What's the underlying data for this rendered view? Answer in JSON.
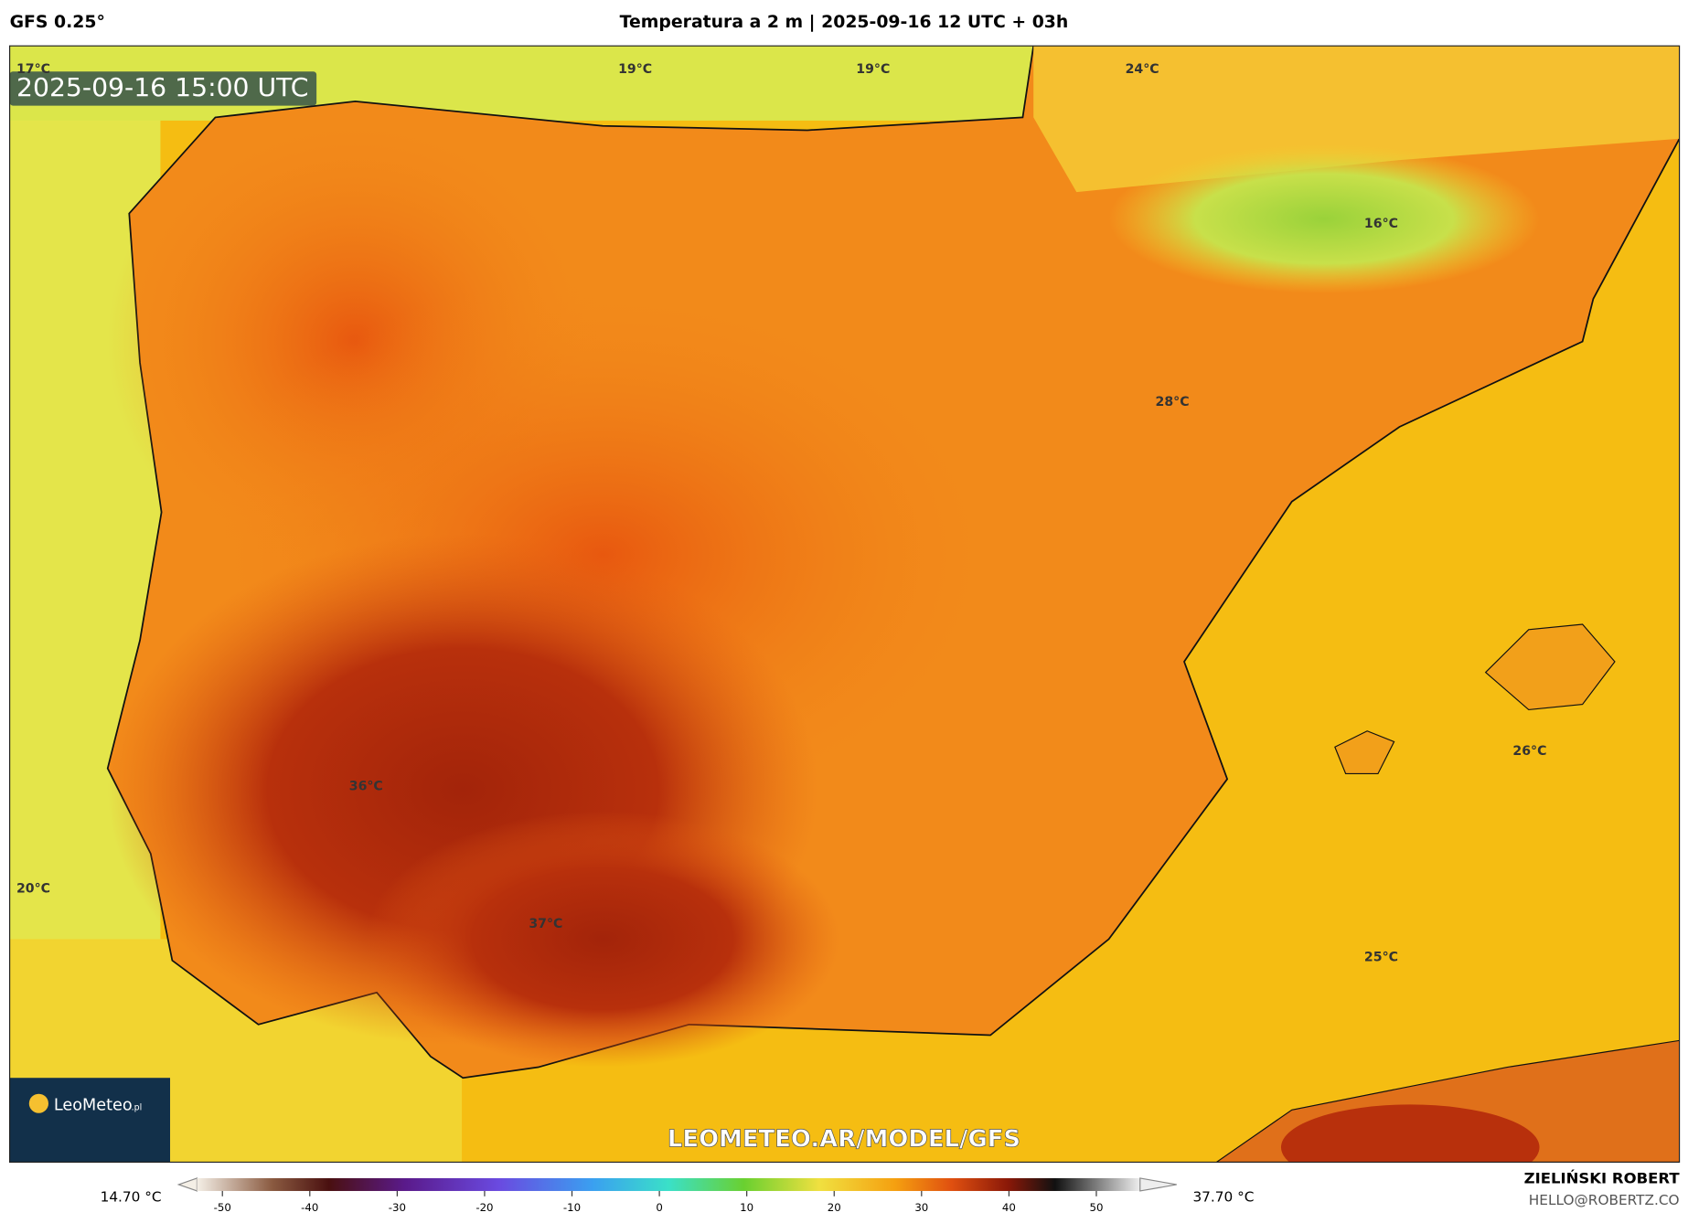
{
  "header": {
    "model": "GFS 0.25°",
    "title": "Temperatura a 2 m | 2025-09-16 12 UTC + 03h"
  },
  "map": {
    "timestamp": "2025-09-16 15:00 UTC",
    "labels": [
      "17°C",
      "19°C",
      "19°C",
      "24°C",
      "16°C",
      "28°C",
      "26°C",
      "36°C",
      "20°C",
      "37°C",
      "25°C"
    ],
    "watermark": "LEOMETEO.AR/MODEL/GFS",
    "logo": {
      "name": "LeoMeteo",
      "suffix": ".pl"
    }
  },
  "colorbar": {
    "min_label": "14.70 °C",
    "max_label": "37.70 °C",
    "lim": [
      -55,
      55
    ],
    "ticks": [
      -50,
      -40,
      -30,
      -20,
      -10,
      0,
      10,
      20,
      30,
      40,
      50
    ]
  },
  "footer": {
    "author": "ZIELIŃSKI ROBERT",
    "contact": "HELLO@ROBERTZ.CO"
  }
}
